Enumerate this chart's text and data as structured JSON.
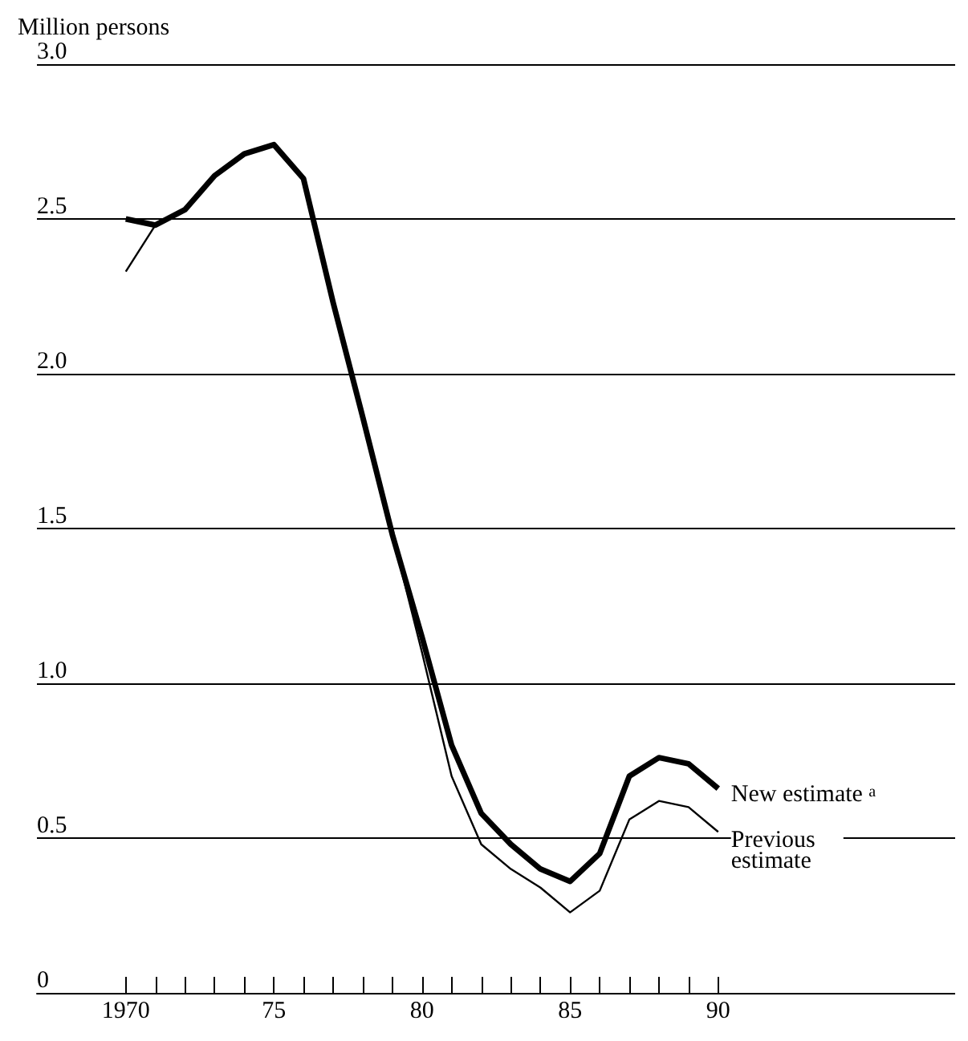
{
  "chart_data": {
    "type": "line",
    "ylabel": "Million persons",
    "x": [
      1970,
      1971,
      1972,
      1973,
      1974,
      1975,
      1976,
      1977,
      1978,
      1979,
      1980,
      1981,
      1982,
      1983,
      1984,
      1985,
      1986,
      1987,
      1988,
      1989,
      1990
    ],
    "series": [
      {
        "name": "New estimate$^{a}$",
        "color": "#000000",
        "values": [
          2.5,
          2.48,
          2.53,
          2.64,
          2.71,
          2.74,
          2.63,
          2.23,
          1.86,
          1.48,
          1.15,
          0.8,
          0.58,
          0.48,
          0.4,
          0.36,
          0.45,
          0.7,
          0.76,
          0.74,
          0.66
        ]
      },
      {
        "name": "Previous estimate",
        "color": "#000000",
        "values": [
          2.33,
          2.48,
          2.53,
          2.64,
          2.71,
          2.74,
          2.63,
          2.23,
          1.86,
          1.48,
          1.1,
          0.7,
          0.48,
          0.4,
          0.34,
          0.26,
          0.33,
          0.56,
          0.62,
          0.6,
          0.52
        ]
      }
    ],
    "xlim": [
      1967,
      1998
    ],
    "xticks": [
      {
        "value": 1970,
        "label": "1970"
      },
      {
        "value": 1971,
        "label": null
      },
      {
        "value": 1972,
        "label": null
      },
      {
        "value": 1973,
        "label": null
      },
      {
        "value": 1974,
        "label": null
      },
      {
        "value": 1975,
        "label": "75"
      },
      {
        "value": 1976,
        "label": null
      },
      {
        "value": 1977,
        "label": null
      },
      {
        "value": 1978,
        "label": null
      },
      {
        "value": 1979,
        "label": null
      },
      {
        "value": 1980,
        "label": "80"
      },
      {
        "value": 1981,
        "label": null
      },
      {
        "value": 1982,
        "label": null
      },
      {
        "value": 1983,
        "label": null
      },
      {
        "value": 1984,
        "label": null
      },
      {
        "value": 1985,
        "label": "85"
      },
      {
        "value": 1986,
        "label": null
      },
      {
        "value": 1987,
        "label": null
      },
      {
        "value": 1988,
        "label": null
      },
      {
        "value": 1989,
        "label": null
      },
      {
        "value": 1990,
        "label": "90"
      }
    ],
    "ylim": [
      0,
      3
    ],
    "yticks": [
      0,
      0.5,
      {
        "value": 1,
        "label": "1.0"
      },
      1.5,
      {
        "value": 2,
        "label": "2.0"
      },
      2.5,
      {
        "value": 3,
        "label": "3.0"
      }
    ],
    "grid": "y",
    "legend": false,
    "marker": "none",
    "line_style": "solid"
  }
}
